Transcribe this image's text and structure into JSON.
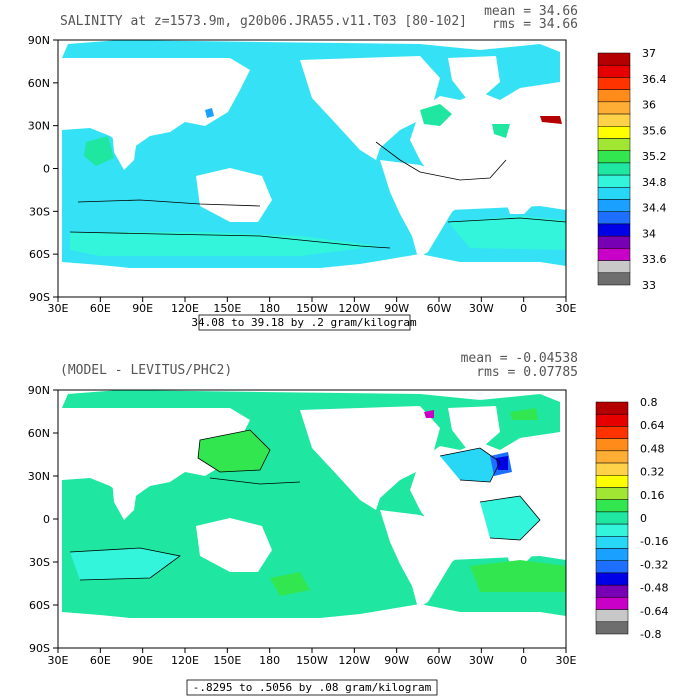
{
  "colors": {
    "land": "#ffffff",
    "frame": "#000000",
    "contour": "#000000"
  },
  "axes": {
    "x_labels": [
      "30E",
      "60E",
      "90E",
      "120E",
      "150E",
      "180",
      "150W",
      "120W",
      "90W",
      "60W",
      "30W",
      "0",
      "30E"
    ],
    "y_labels": [
      "90N",
      "60N",
      "30N",
      "0",
      "30S",
      "60S",
      "90S"
    ]
  },
  "panels": [
    {
      "id": "top",
      "title": "SALINITY at z=1573.9m, g20b06.JRA55.v11.T03 [80-102]",
      "stat1": "mean = 34.66",
      "stat2": "rms = 34.66",
      "range_label": "34.08 to 39.18 by .2 gram/kilogram",
      "ocean_fill": "#35e2f5",
      "colorbar": {
        "labels": [
          "37",
          "36.4",
          "36",
          "35.6",
          "35.2",
          "34.8",
          "34.4",
          "34",
          "33.6",
          "33"
        ],
        "colors": [
          "#b40000",
          "#e60000",
          "#ff3300",
          "#ff8c1a",
          "#ffae35",
          "#ffd24a",
          "#ffff00",
          "#a0e632",
          "#32e650",
          "#1fe6a0",
          "#32f5dc",
          "#28d7f5",
          "#1aa0ff",
          "#1e6eff",
          "#0000e6",
          "#7800b4",
          "#c800c8",
          "#c8c8c8",
          "#6e6e6e"
        ]
      },
      "regions": [
        {
          "fill": "#1fe6a0"
        },
        {
          "fill": "#1fe6a0"
        },
        {
          "fill": "#1fe6a0"
        },
        {
          "fill": "#32f5dc"
        },
        {
          "fill": "#32f5dc"
        },
        {
          "fill": "#1aa0ff"
        },
        {
          "fill": "#b40000"
        }
      ]
    },
    {
      "id": "bottom",
      "title": "(MODEL - LEVITUS/PHC2)",
      "stat1": "mean = -0.04538",
      "stat2": "rms = 0.07785",
      "range_label": "-.8295 to .5056 by .08 gram/kilogram",
      "ocean_fill": "#1fe6a0",
      "colorbar": {
        "labels": [
          "0.8",
          "0.64",
          "0.48",
          "0.32",
          "0.16",
          "0",
          "-0.16",
          "-0.32",
          "-0.48",
          "-0.64",
          "-0.8"
        ],
        "colors": [
          "#b40000",
          "#e60000",
          "#ff3300",
          "#ff8c1a",
          "#ffae35",
          "#ffd24a",
          "#ffff00",
          "#a0e632",
          "#32e650",
          "#1fe6a0",
          "#32f5dc",
          "#28d7f5",
          "#1aa0ff",
          "#1e6eff",
          "#0000e6",
          "#7800b4",
          "#c800c8",
          "#c8c8c8",
          "#6e6e6e"
        ]
      },
      "regions": [
        {
          "fill": "#32e650"
        },
        {
          "fill": "#32e650"
        },
        {
          "fill": "#32e650"
        },
        {
          "fill": "#32f5dc"
        },
        {
          "fill": "#32f5dc"
        },
        {
          "fill": "#28d7f5"
        },
        {
          "fill": "#1e6eff"
        },
        {
          "fill": "#0000e6"
        },
        {
          "fill": "#c800c8"
        },
        {
          "fill": "#32e650"
        }
      ]
    }
  ]
}
